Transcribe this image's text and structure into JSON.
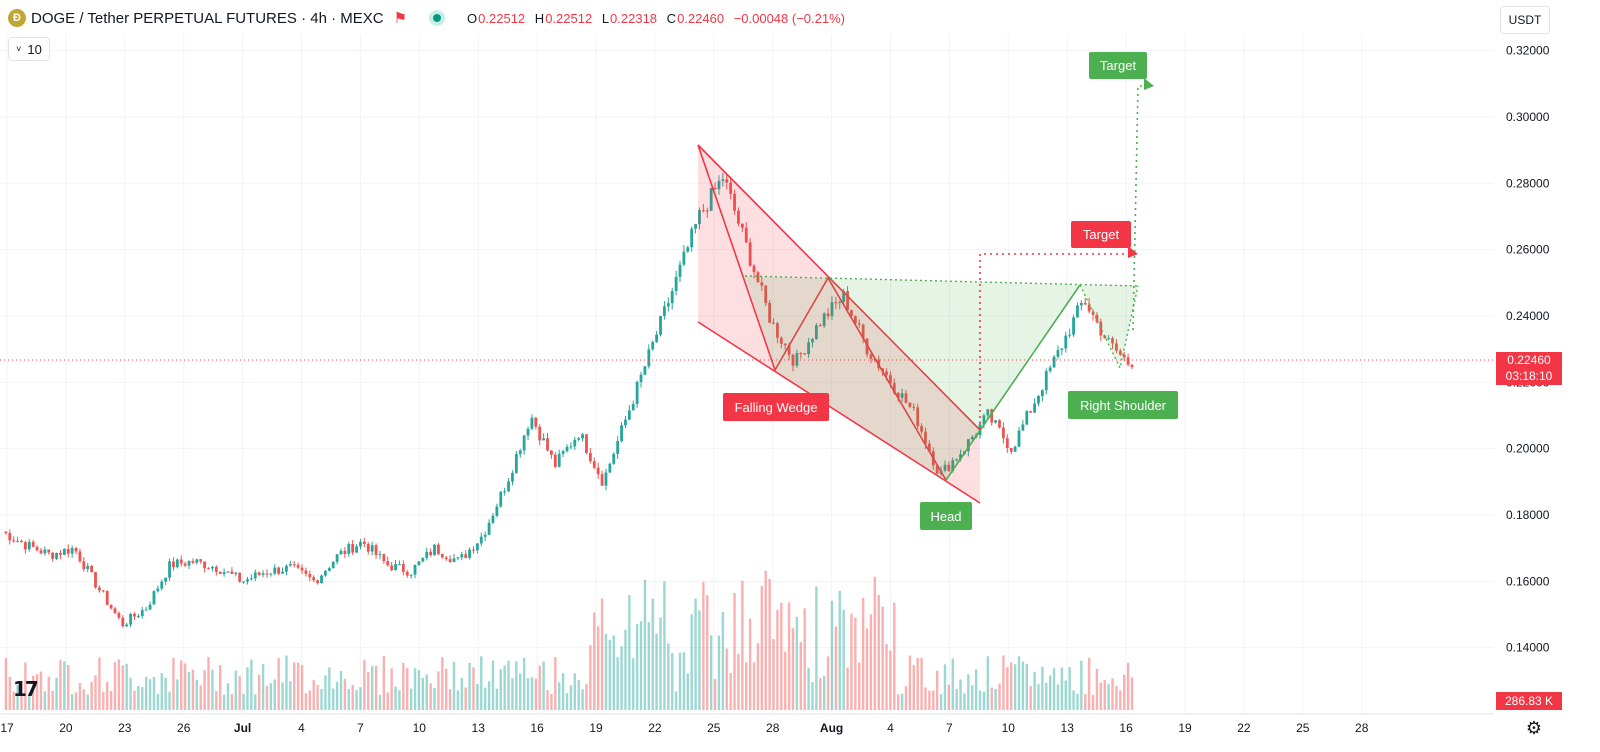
{
  "header": {
    "coin_glyph": "Ð",
    "title": "DOGE / Tether PERPETUAL FUTURES · 4h · MEXC",
    "ohlc": [
      {
        "key": "O",
        "value": "0.22512"
      },
      {
        "key": "H",
        "value": "0.22512"
      },
      {
        "key": "L",
        "value": "0.22318"
      },
      {
        "key": "C",
        "value": "0.22460"
      }
    ],
    "change": "−0.00048 (−0.21%)"
  },
  "indicator_box": {
    "chevron": "˅",
    "value": "10"
  },
  "currency_button": "USDT",
  "price_axis": {
    "labels": [
      "0.32000",
      "0.30000",
      "0.28000",
      "0.26000",
      "0.24000",
      "0.22000",
      "0.20000",
      "0.18000",
      "0.16000",
      "0.14000"
    ],
    "current_price": "0.22460",
    "countdown": "03:18:10",
    "volume_label": "286.83 K"
  },
  "time_axis": {
    "labels": [
      "17",
      "20",
      "23",
      "26",
      "Jul",
      "4",
      "7",
      "10",
      "13",
      "16",
      "19",
      "22",
      "25",
      "28",
      "Aug",
      "4",
      "7",
      "10",
      "13",
      "16",
      "19",
      "22",
      "25",
      "28"
    ]
  },
  "annotations": {
    "falling_wedge": "Falling Wedge",
    "head": "Head",
    "right_shoulder": "Right Shoulder",
    "target_red": "Target",
    "target_green": "Target"
  },
  "colors": {
    "up": "#26a69a",
    "down": "#ef5350",
    "red_label": "#f23645",
    "green_label": "#4caf50",
    "grid": "#f0f3fa"
  },
  "logo": "17",
  "settings_icon": "gear-icon",
  "chart_data": {
    "type": "candlestick",
    "ylim": [
      0.12,
      0.325
    ],
    "approx_closes": [
      0.175,
      0.171,
      0.168,
      0.17,
      0.158,
      0.147,
      0.152,
      0.165,
      0.166,
      0.164,
      0.16,
      0.163,
      0.164,
      0.16,
      0.168,
      0.172,
      0.165,
      0.163,
      0.17,
      0.166,
      0.174,
      0.19,
      0.21,
      0.195,
      0.205,
      0.19,
      0.21,
      0.23,
      0.25,
      0.27,
      0.282,
      0.26,
      0.238,
      0.226,
      0.238,
      0.246,
      0.23,
      0.22,
      0.21,
      0.192,
      0.2,
      0.21,
      0.2,
      0.215,
      0.23,
      0.245,
      0.232,
      0.2246
    ],
    "last_close": 0.2246,
    "current_volume": 286830
  }
}
